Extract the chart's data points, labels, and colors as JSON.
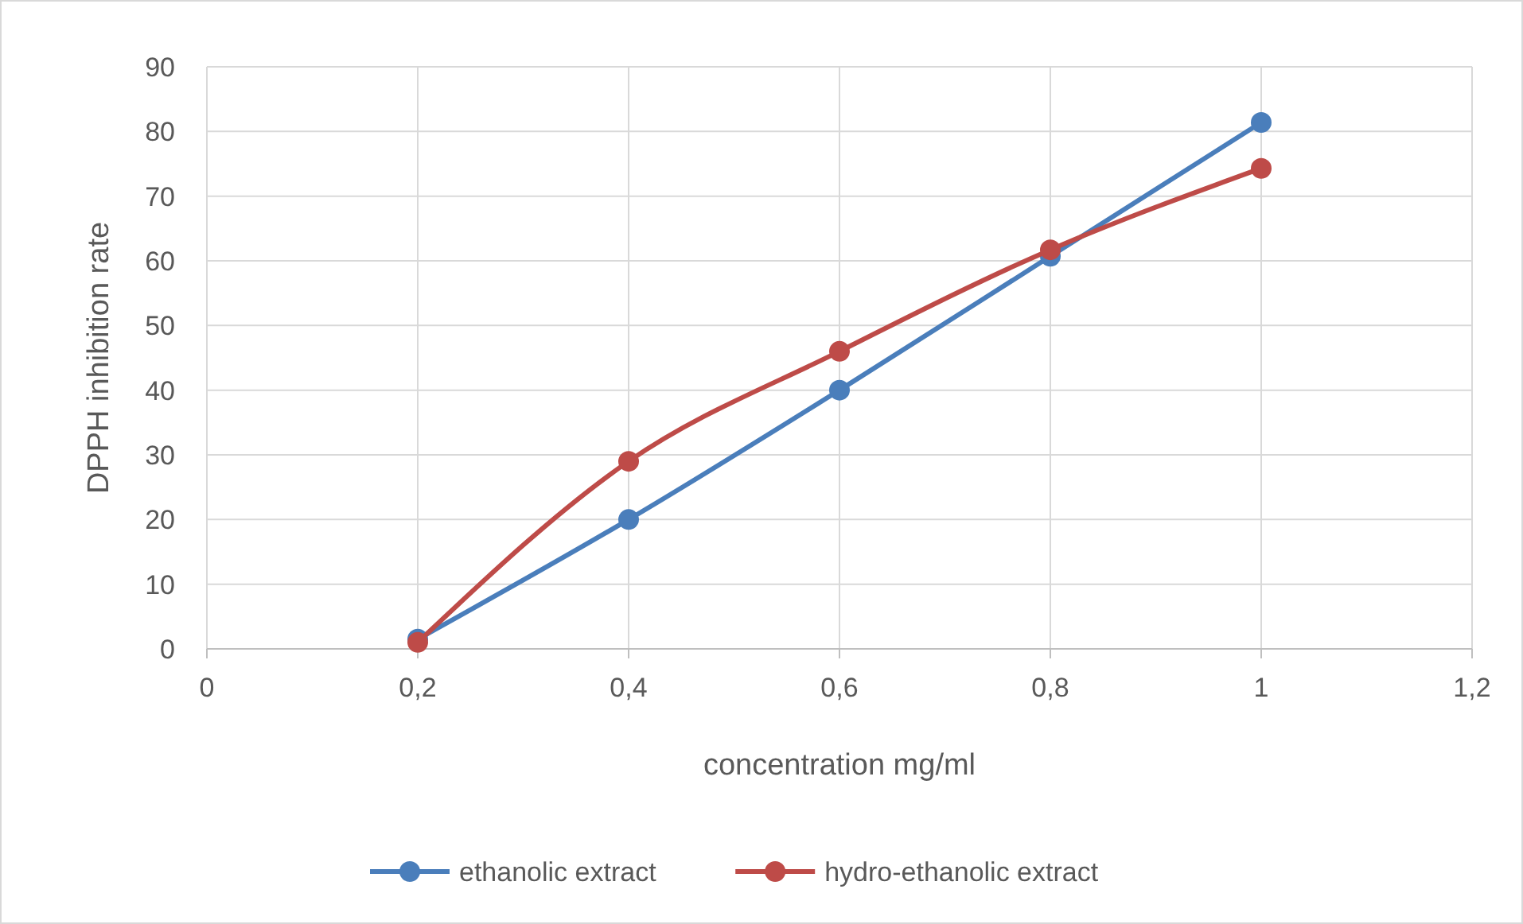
{
  "chart_data": {
    "type": "line",
    "xlabel": "concentration mg/ml",
    "ylabel": "DPPH inhibition rate",
    "xlim": [
      0,
      1.2
    ],
    "xticks": [
      0,
      {
        "value": 0.2,
        "label": "0,2"
      },
      {
        "value": 0.4,
        "label": "0,4"
      },
      {
        "value": 0.6,
        "label": "0,6"
      },
      {
        "value": 0.8,
        "label": "0,8"
      },
      1,
      {
        "value": 1.2,
        "label": "1,2"
      }
    ],
    "ylim": [
      0,
      90
    ],
    "yticks": [
      0,
      10,
      20,
      30,
      40,
      50,
      60,
      70,
      80,
      90
    ],
    "x": [
      0.2,
      0.4,
      0.6,
      0.8,
      1
    ],
    "series": [
      {
        "name": "ethanolic extract",
        "color": "#4a7ebb",
        "values": [
          1.5,
          20,
          40,
          60.7,
          81.4
        ]
      },
      {
        "name": "hydro-ethanolic extract",
        "color": "#be4b48",
        "values": [
          1,
          29,
          46,
          61.7,
          74.3
        ]
      }
    ],
    "grid": true,
    "legend": "bottom",
    "marker": "circle",
    "line_style": "solid"
  }
}
